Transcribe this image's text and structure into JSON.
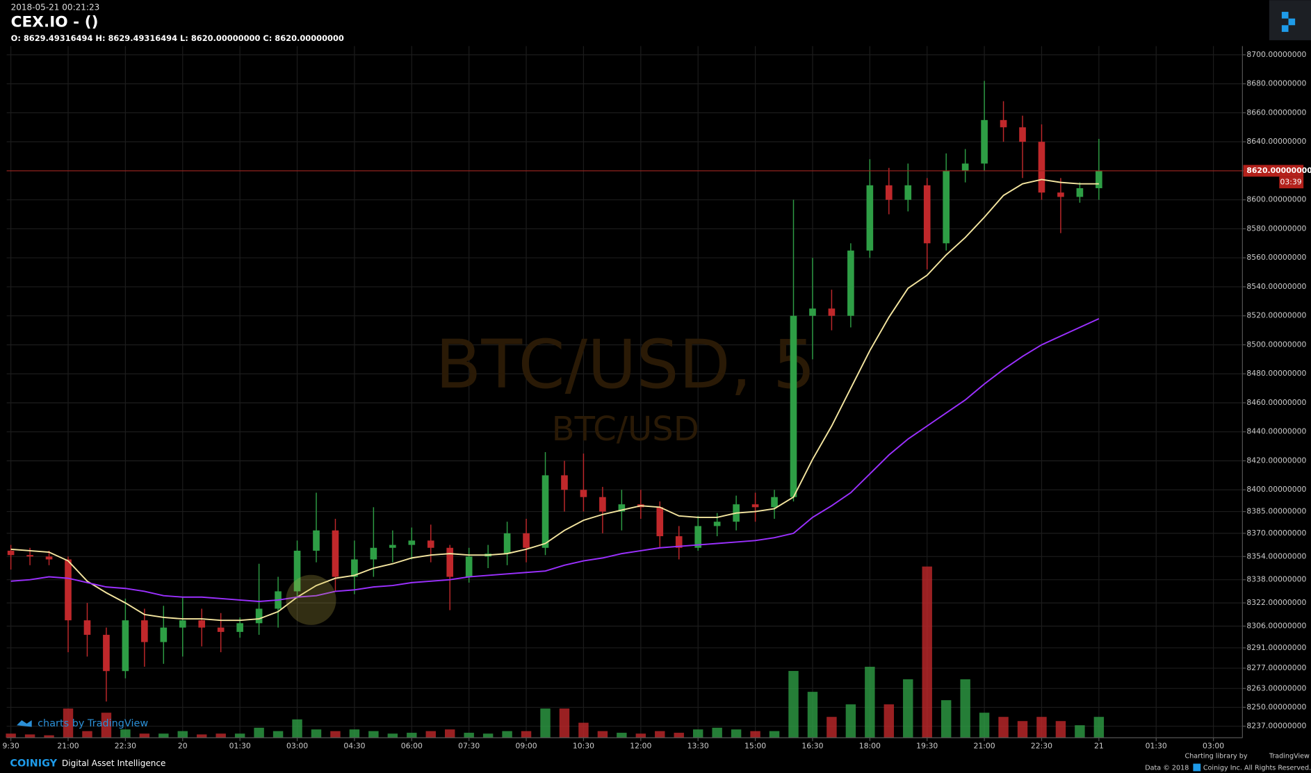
{
  "chart_data": {
    "type": "candlestick",
    "timestamp": "2018-05-21 00:21:23",
    "title": "CEX.IO -  ()",
    "ohlc_text": "O: 8629.49316494 H: 8629.49316494 L: 8620.00000000 C: 8620.00000000",
    "watermark": "BTC/USD, 5",
    "watermark_sub": "BTC/USD",
    "up_color": "#2e9e45",
    "down_color": "#c0282b",
    "categories": [
      "9:30",
      null,
      null,
      "21:00",
      null,
      null,
      "22:30",
      null,
      null,
      "20",
      null,
      null,
      "01:30",
      null,
      null,
      "03:00",
      null,
      null,
      "04:30",
      null,
      null,
      "06:00",
      null,
      null,
      "07:30",
      null,
      null,
      "09:00",
      null,
      null,
      "10:30",
      null,
      null,
      "12:00",
      null,
      null,
      "13:30",
      null,
      null,
      "15:00",
      null,
      null,
      "16:30",
      null,
      null,
      "18:00",
      null,
      null,
      "19:30",
      null,
      null,
      "21:00",
      null,
      null,
      "22:30",
      null,
      null,
      "21",
      null,
      null,
      "01:30",
      null,
      null,
      "03:00",
      null
    ],
    "open": [
      8358,
      8355,
      8354,
      8352,
      8310,
      8300,
      8275,
      8310,
      8295,
      8305,
      8310,
      8305,
      8302,
      8308,
      8318,
      8330,
      8358,
      8372,
      8340,
      8352,
      8360,
      8362,
      8365,
      8360,
      8340,
      8354,
      8356,
      8370,
      8360,
      8410,
      8400,
      8395,
      8385,
      8390,
      8388,
      8368,
      8360,
      8375,
      8378,
      8390,
      8388,
      8395,
      8520,
      8525,
      8520,
      8565,
      8610,
      8600,
      8610,
      8570,
      8620,
      8625,
      8655,
      8650,
      8640,
      8605,
      8602,
      8608,
      null,
      null,
      null,
      null,
      null,
      null,
      null
    ],
    "high": [
      8362,
      8360,
      8358,
      8354,
      8322,
      8305,
      8325,
      8318,
      8320,
      8326,
      8318,
      8315,
      8312,
      8349,
      8340,
      8365,
      8398,
      8380,
      8365,
      8388,
      8372,
      8374,
      8376,
      8362,
      8360,
      8362,
      8378,
      8380,
      8426,
      8420,
      8425,
      8402,
      8400,
      8400,
      8392,
      8375,
      8382,
      8384,
      8396,
      8398,
      8400,
      8600,
      8560,
      8538,
      8570,
      8628,
      8622,
      8625,
      8615,
      8632,
      8635,
      8682,
      8668,
      8658,
      8652,
      8615,
      8612,
      8642,
      null,
      null,
      null,
      null,
      null,
      null,
      null
    ],
    "low": [
      8345,
      8348,
      8348,
      8288,
      8285,
      8254,
      8270,
      8278,
      8280,
      8285,
      8292,
      8288,
      8298,
      8300,
      8305,
      8325,
      8350,
      8330,
      8328,
      8340,
      8350,
      8352,
      8350,
      8317,
      8336,
      8346,
      8348,
      8350,
      8355,
      8385,
      8385,
      8370,
      8372,
      8380,
      8360,
      8352,
      8358,
      8368,
      8372,
      8378,
      8380,
      8392,
      8490,
      8510,
      8512,
      8560,
      8590,
      8592,
      8552,
      8565,
      8612,
      8620,
      8640,
      8615,
      8600,
      8577,
      8598,
      8600,
      null,
      null,
      null,
      null,
      null,
      null,
      null
    ],
    "close": [
      8355,
      8354,
      8352,
      8310,
      8300,
      8275,
      8310,
      8295,
      8305,
      8310,
      8305,
      8302,
      8308,
      8318,
      8330,
      8358,
      8372,
      8340,
      8352,
      8360,
      8362,
      8365,
      8360,
      8340,
      8354,
      8356,
      8370,
      8360,
      8410,
      8400,
      8395,
      8385,
      8390,
      8388,
      8368,
      8360,
      8375,
      8378,
      8390,
      8388,
      8395,
      8520,
      8525,
      8520,
      8565,
      8610,
      8600,
      8610,
      8570,
      8620,
      8625,
      8655,
      8650,
      8640,
      8605,
      8602,
      8608,
      8620,
      null,
      null,
      null,
      null,
      null,
      null,
      null
    ],
    "volume": [
      5,
      4,
      3,
      35,
      8,
      30,
      10,
      5,
      5,
      8,
      4,
      5,
      5,
      12,
      8,
      22,
      10,
      8,
      10,
      8,
      5,
      6,
      8,
      10,
      6,
      5,
      8,
      8,
      35,
      35,
      18,
      8,
      6,
      5,
      8,
      6,
      10,
      12,
      10,
      8,
      8,
      80,
      55,
      25,
      40,
      85,
      40,
      70,
      205,
      45,
      70,
      30,
      25,
      20,
      25,
      20,
      15,
      25,
      null,
      null,
      null,
      null,
      null,
      null,
      null
    ],
    "volume_ylim": [
      0,
      240
    ],
    "moving_averages": [
      {
        "color": "#f5e6a0",
        "values": [
          8359,
          8358,
          8357,
          8351,
          8337,
          8329,
          8322,
          8314,
          8312,
          8311,
          8311,
          8310,
          8310,
          8311,
          8316,
          8326,
          8334,
          8339,
          8341,
          8346,
          8349,
          8353,
          8355,
          8356,
          8355,
          8355,
          8356,
          8359,
          8363,
          8372,
          8379,
          8383,
          8386,
          8389,
          8388,
          8382,
          8381,
          8381,
          8384,
          8385,
          8387,
          8395,
          8421,
          8444,
          8470,
          8496,
          8519,
          8539,
          8548,
          8562,
          8574,
          8588,
          8603,
          8611,
          8614,
          8612,
          8611,
          8611,
          null,
          null,
          null,
          null,
          null,
          null,
          null
        ]
      },
      {
        "color": "#9b30ff",
        "values": [
          8337,
          8338,
          8340,
          8339,
          8336,
          8333,
          8332,
          8330,
          8327,
          8326,
          8326,
          8325,
          8324,
          8323,
          8324,
          8326,
          8327,
          8330,
          8331,
          8333,
          8334,
          8336,
          8337,
          8338,
          8340,
          8341,
          8342,
          8343,
          8344,
          8348,
          8351,
          8353,
          8356,
          8358,
          8360,
          8361,
          8362,
          8363,
          8364,
          8365,
          8367,
          8370,
          8381,
          8389,
          8398,
          8411,
          8424,
          8435,
          8444,
          8453,
          8462,
          8473,
          8483,
          8492,
          8500,
          8506,
          8512,
          8518,
          null,
          null,
          null,
          null,
          null,
          null,
          null
        ]
      }
    ],
    "ylim": [
      8229,
      8706
    ],
    "yticks": [
      {
        "value": 8700,
        "label": "8700.00000000"
      },
      {
        "value": 8680,
        "label": "8680.00000000"
      },
      {
        "value": 8660,
        "label": "8660.00000000"
      },
      {
        "value": 8640,
        "label": "8640.00000000"
      },
      {
        "value": 8620,
        "label": "8620.00000000"
      },
      {
        "value": 8600,
        "label": "8600.00000000"
      },
      {
        "value": 8580,
        "label": "8580.00000000"
      },
      {
        "value": 8560,
        "label": "8560.00000000"
      },
      {
        "value": 8540,
        "label": "8540.00000000"
      },
      {
        "value": 8520,
        "label": "8520.00000000"
      },
      {
        "value": 8500,
        "label": "8500.00000000"
      },
      {
        "value": 8480,
        "label": "8480.00000000"
      },
      {
        "value": 8460,
        "label": "8460.00000000"
      },
      {
        "value": 8440,
        "label": "8440.00000000"
      },
      {
        "value": 8420,
        "label": "8420.00000000"
      },
      {
        "value": 8400,
        "label": "8400.00000000"
      },
      {
        "value": 8385,
        "label": "8385.00000000"
      },
      {
        "value": 8370,
        "label": "8370.00000000"
      },
      {
        "value": 8354,
        "label": "8354.00000000"
      },
      {
        "value": 8338,
        "label": "8338.00000000"
      },
      {
        "value": 8322,
        "label": "8322.00000000"
      },
      {
        "value": 8306,
        "label": "8306.00000000"
      },
      {
        "value": 8291,
        "label": "8291.00000000"
      },
      {
        "value": 8277,
        "label": "8277.00000000"
      },
      {
        "value": 8263,
        "label": "8263.00000000"
      },
      {
        "value": 8250,
        "label": "8250.00000000"
      },
      {
        "value": 8237,
        "label": "8237.00000000"
      }
    ],
    "grid": true,
    "last_price": {
      "value": 8620,
      "label": "8620.00000000"
    },
    "countdown": "03:39",
    "credit": "charts by TradingView"
  },
  "footer": {
    "brand": "COINIGY",
    "tagline": "Digital Asset Intelligence",
    "charting_by": "Charting library by",
    "tradingview": "TradingView",
    "data_copyright": "Data © 2018",
    "rights": "Coinigy Inc. All Rights Reserved."
  }
}
